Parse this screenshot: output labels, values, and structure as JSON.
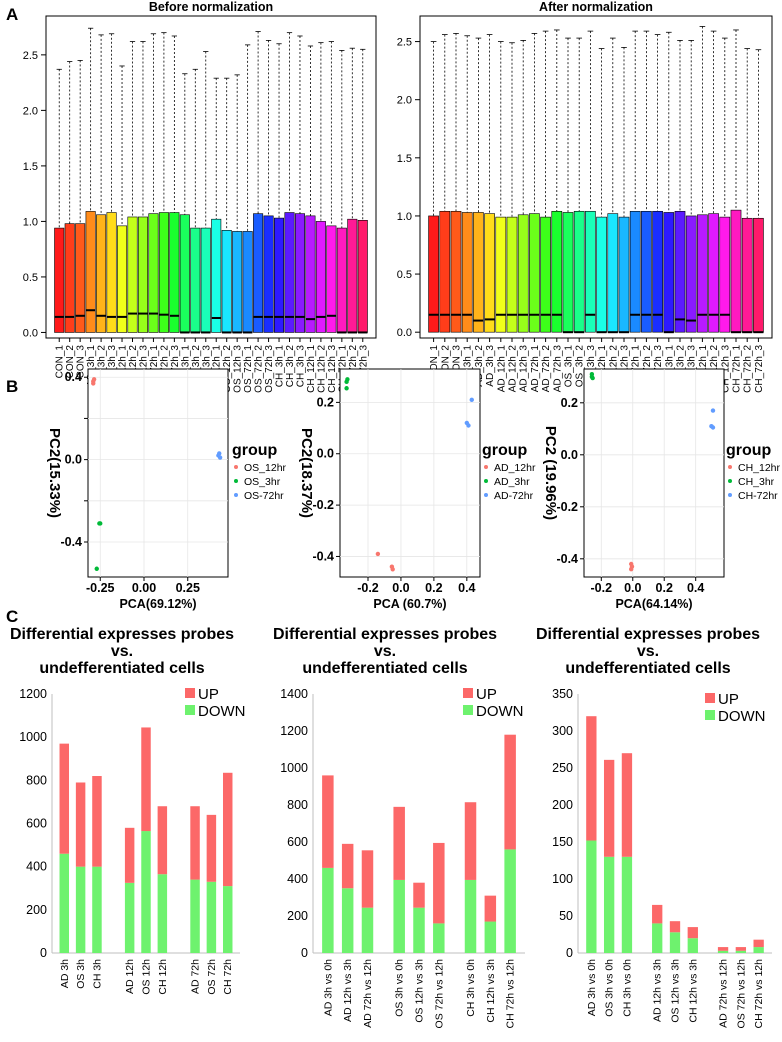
{
  "panels": {
    "a_label": "A",
    "b_label": "B",
    "c_label": "C"
  },
  "chart_data": [
    {
      "id": "box_before",
      "type": "box",
      "title": "Before normalization",
      "ylim": [
        -0.05,
        2.85
      ],
      "yticks": [
        "0.0",
        "0.5",
        "1.0",
        "1.5",
        "2.0",
        "2.5"
      ],
      "categories": [
        "CON_1",
        "CON_2",
        "CON_3",
        "AD_3h_1",
        "AD_3h_2",
        "AD_3h_3",
        "AD_12h_1",
        "AD_12h_2",
        "AD_12h_3",
        "AD_72h_1",
        "AD_72h_2",
        "AD_72h_3",
        "OS_3h_1",
        "OS_3h_2",
        "OS_3h_3",
        "OS_12h_1",
        "OS_12h_2",
        "OS_12h_3",
        "OS_72h_1",
        "OS_72h_2",
        "OS_72h_3",
        "CH_3h_1",
        "CH_3h_2",
        "CH_3h_3",
        "CH_12h_1",
        "CH_12h_2",
        "CH_12h_3",
        "CH_72h_1",
        "CH_72h_2",
        "CH_72h_3"
      ],
      "q3": [
        0.94,
        0.98,
        0.98,
        1.09,
        1.06,
        1.08,
        0.96,
        1.04,
        1.04,
        1.07,
        1.08,
        1.08,
        1.06,
        0.94,
        0.94,
        1.02,
        0.92,
        0.91,
        0.91,
        1.07,
        1.05,
        1.03,
        1.08,
        1.07,
        1.05,
        1.0,
        0.96,
        0.94,
        1.02,
        1.01
      ],
      "median": [
        0.14,
        0.14,
        0.15,
        0.2,
        0.15,
        0.14,
        0.14,
        0.17,
        0.17,
        0.17,
        0.16,
        0.15,
        0.0,
        0.0,
        0.0,
        0.13,
        0.0,
        0.0,
        0.0,
        0.14,
        0.14,
        0.14,
        0.14,
        0.14,
        0.12,
        0.14,
        0.15,
        0.0,
        0.0,
        0.0
      ],
      "whisker": [
        2.37,
        2.44,
        2.45,
        2.74,
        2.68,
        2.69,
        2.4,
        2.62,
        2.62,
        2.69,
        2.7,
        2.67,
        2.33,
        2.37,
        2.53,
        2.29,
        2.29,
        2.32,
        2.59,
        2.71,
        2.63,
        2.6,
        2.7,
        2.67,
        2.58,
        2.61,
        2.62,
        2.54,
        2.56,
        2.55
      ],
      "colors": [
        "#ff1a1a",
        "#ff3d1a",
        "#ff5a1a",
        "#ff8c1a",
        "#ffb31a",
        "#ffdc1a",
        "#f0ff1a",
        "#c4ff1a",
        "#97ff1a",
        "#6bff1a",
        "#3dff1a",
        "#1aff2e",
        "#1aff5c",
        "#1aff8a",
        "#1affb8",
        "#1affe6",
        "#1ae6ff",
        "#1ab8ff",
        "#1a8aff",
        "#1a5cff",
        "#1a2eff",
        "#2e1aff",
        "#5c1aff",
        "#8a1aff",
        "#b81aff",
        "#e01aff",
        "#ff1aeb",
        "#ff1ac0",
        "#ff1a96",
        "#ff1a6b"
      ]
    },
    {
      "id": "box_after",
      "type": "box",
      "title": "After normalization",
      "ylim": [
        -0.05,
        2.72
      ],
      "yticks": [
        "0.0",
        "0.5",
        "1.0",
        "1.5",
        "2.0",
        "2.5"
      ],
      "categories": [
        "CON_1",
        "CON_2",
        "CON_3",
        "AD_3h_1",
        "AD_3h_2",
        "AD_3h_3",
        "AD_12h_1",
        "AD_12h_2",
        "AD_12h_3",
        "AD_72h_1",
        "AD_72h_2",
        "AD_72h_3",
        "OS_3h_1",
        "OS_3h_2",
        "OS_3h_3",
        "OS_12h_1",
        "OS_12h_2",
        "OS_12h_3",
        "OS_72h_1",
        "OS_72h_2",
        "OS_72h_3",
        "CH_3h_1",
        "CH_3h_2",
        "CH_3h_3",
        "CH_12h_1",
        "CH_12h_2",
        "CH_12h_3",
        "CH_72h_1",
        "CH_72h_2",
        "CH_72h_3"
      ],
      "q3": [
        1.0,
        1.04,
        1.04,
        1.03,
        1.03,
        1.02,
        0.99,
        0.99,
        1.01,
        1.02,
        0.99,
        1.04,
        1.03,
        1.04,
        1.04,
        0.99,
        1.02,
        0.99,
        1.04,
        1.04,
        1.04,
        1.03,
        1.04,
        1.0,
        1.01,
        1.02,
        0.99,
        1.05,
        0.98,
        0.98
      ],
      "median": [
        0.15,
        0.15,
        0.15,
        0.15,
        0.1,
        0.11,
        0.15,
        0.15,
        0.15,
        0.15,
        0.15,
        0.15,
        0.0,
        0.0,
        0.15,
        0.0,
        0.0,
        0.0,
        0.15,
        0.15,
        0.15,
        0.0,
        0.11,
        0.1,
        0.15,
        0.15,
        0.15,
        0.0,
        0.0,
        0.0
      ],
      "whisker": [
        2.5,
        2.56,
        2.57,
        2.55,
        2.53,
        2.56,
        2.5,
        2.49,
        2.51,
        2.57,
        2.59,
        2.6,
        2.53,
        2.53,
        2.59,
        2.44,
        2.53,
        2.45,
        2.59,
        2.59,
        2.56,
        2.58,
        2.51,
        2.51,
        2.63,
        2.59,
        2.53,
        2.6,
        2.44,
        2.43
      ],
      "colors": [
        "#ff1a1a",
        "#ff3d1a",
        "#ff5a1a",
        "#ff8c1a",
        "#ffb31a",
        "#ffdc1a",
        "#f0ff1a",
        "#c4ff1a",
        "#97ff1a",
        "#6bff1a",
        "#3dff1a",
        "#1aff2e",
        "#1aff5c",
        "#1aff8a",
        "#1affb8",
        "#1affe6",
        "#1ae6ff",
        "#1ab8ff",
        "#1a8aff",
        "#1a5cff",
        "#1a2eff",
        "#2e1aff",
        "#5c1aff",
        "#8a1aff",
        "#b81aff",
        "#e01aff",
        "#ff1aeb",
        "#ff1ac0",
        "#ff1a96",
        "#ff1a6b"
      ]
    },
    {
      "id": "pca_os",
      "type": "scatter",
      "xlabel": "PCA(69.12%)",
      "ylabel": "PC2(15.33%)",
      "xlim": [
        -0.32,
        0.48
      ],
      "ylim": [
        -0.57,
        0.44
      ],
      "xticks": [
        -0.25,
        0.0,
        0.25
      ],
      "xtick_labels": [
        "-0.25",
        "0.00",
        "0.25"
      ],
      "yticks": [
        -0.4,
        -0.2,
        0.0,
        0.2,
        0.4
      ],
      "ytick_labels": [
        "-0.4",
        "",
        "0.0",
        "",
        "0.4"
      ],
      "legend_title": "group",
      "series": [
        {
          "name": "OS_12hr",
          "color": "#f8766d",
          "points": [
            [
              -0.29,
              0.38
            ],
            [
              -0.29,
              0.37
            ],
            [
              -0.285,
              0.39
            ]
          ]
        },
        {
          "name": "OS_3hr",
          "color": "#00ba38",
          "points": [
            [
              -0.25,
              -0.31
            ],
            [
              -0.255,
              -0.31
            ],
            [
              -0.27,
              -0.53
            ]
          ]
        },
        {
          "name": "OS-72hr",
          "color": "#619cff",
          "points": [
            [
              0.43,
              0.03
            ],
            [
              0.435,
              0.01
            ],
            [
              0.425,
              0.02
            ]
          ]
        }
      ]
    },
    {
      "id": "pca_ad",
      "type": "scatter",
      "xlabel": "PCA (60.7%)",
      "ylabel": "PC2(18.37%)",
      "xlim": [
        -0.37,
        0.48
      ],
      "ylim": [
        -0.48,
        0.33
      ],
      "xticks": [
        -0.2,
        0.0,
        0.2,
        0.4
      ],
      "xtick_labels": [
        "-0.2",
        "0.0",
        "0.2",
        "0.4"
      ],
      "yticks": [
        -0.4,
        -0.2,
        0.0,
        0.2
      ],
      "ytick_labels": [
        "-0.4",
        "-0.2",
        "0.0",
        "0.2"
      ],
      "legend_title": "group",
      "series": [
        {
          "name": "AD_12hr",
          "color": "#f8766d",
          "points": [
            [
              -0.14,
              -0.39
            ],
            [
              -0.05,
              -0.45
            ],
            [
              -0.055,
              -0.44
            ]
          ]
        },
        {
          "name": "AD_3hr",
          "color": "#00ba38",
          "points": [
            [
              -0.33,
              0.28
            ],
            [
              -0.33,
              0.255
            ],
            [
              -0.325,
              0.29
            ]
          ]
        },
        {
          "name": "AD-72hr",
          "color": "#619cff",
          "points": [
            [
              0.4,
              0.12
            ],
            [
              0.41,
              0.11
            ],
            [
              0.43,
              0.21
            ]
          ]
        }
      ]
    },
    {
      "id": "pca_ch",
      "type": "scatter",
      "xlabel": "PCA(64.14%)",
      "ylabel": "PC2 (19.96%)",
      "xlim": [
        -0.31,
        0.58
      ],
      "ylim": [
        -0.47,
        0.33
      ],
      "xticks": [
        -0.2,
        0.0,
        0.2,
        0.4
      ],
      "xtick_labels": [
        "-0.2",
        "0.0",
        "0.2",
        "0.4"
      ],
      "yticks": [
        -0.4,
        -0.2,
        0.0,
        0.2
      ],
      "ytick_labels": [
        "-0.4",
        "-0.2",
        "0.0",
        "0.2"
      ],
      "legend_title": "group",
      "series": [
        {
          "name": "CH_12hr",
          "color": "#f8766d",
          "points": [
            [
              -0.01,
              -0.42
            ],
            [
              -0.005,
              -0.43
            ],
            [
              -0.01,
              -0.44
            ]
          ]
        },
        {
          "name": "CH_3hr",
          "color": "#00ba38",
          "points": [
            [
              -0.26,
              0.3
            ],
            [
              -0.255,
              0.295
            ],
            [
              -0.26,
              0.31
            ]
          ]
        },
        {
          "name": "CH-72hr",
          "color": "#619cff",
          "points": [
            [
              0.5,
              0.11
            ],
            [
              0.51,
              0.105
            ],
            [
              0.51,
              0.17
            ]
          ]
        }
      ]
    },
    {
      "id": "bar_time",
      "type": "bar",
      "stacked": true,
      "title_lines": [
        "Differential expresses probes",
        "vs.",
        "undefferentiated cells"
      ],
      "ylim": [
        0,
        1200
      ],
      "yticks": [
        0,
        200,
        400,
        600,
        800,
        1000,
        1200
      ],
      "categories": [
        "AD 3h",
        "OS 3h",
        "CH 3h",
        "AD 12h",
        "OS 12h",
        "CH 12h",
        "AD 72h",
        "OS 72h",
        "CH 72h"
      ],
      "series": [
        {
          "name": "DOWN",
          "color": "#6ef26e",
          "values": [
            460,
            400,
            400,
            325,
            565,
            365,
            340,
            330,
            310
          ]
        },
        {
          "name": "UP",
          "color": "#fc6868",
          "values": [
            510,
            390,
            420,
            255,
            480,
            315,
            340,
            310,
            525
          ]
        }
      ]
    },
    {
      "id": "bar_pair_all",
      "type": "bar",
      "stacked": true,
      "title_lines": [
        "Differential expresses probes",
        "vs.",
        "undefferentiated cells"
      ],
      "ylim": [
        0,
        1400
      ],
      "yticks": [
        0,
        200,
        400,
        600,
        800,
        1000,
        1200,
        1400
      ],
      "categories": [
        "AD 3h vs 0h",
        "AD 12h vs 3h",
        "AD 72h vs 12h",
        "OS 3h vs 0h",
        "OS 12h vs 3h",
        "OS 72h vs 12h",
        "CH 3h vs 0h",
        "CH 12h vs 3h",
        "CH 72h vs 12h"
      ],
      "series": [
        {
          "name": "DOWN",
          "color": "#6ef26e",
          "values": [
            460,
            350,
            245,
            395,
            245,
            160,
            395,
            170,
            560
          ]
        },
        {
          "name": "UP",
          "color": "#fc6868",
          "values": [
            500,
            240,
            310,
            395,
            135,
            435,
            420,
            140,
            620
          ]
        }
      ]
    },
    {
      "id": "bar_pair_small",
      "type": "bar",
      "stacked": true,
      "title_lines": [
        "Differential expresses probes",
        "vs.",
        "undefferentiated cells"
      ],
      "ylim": [
        0,
        350
      ],
      "yticks": [
        0,
        50,
        100,
        150,
        200,
        250,
        300,
        350
      ],
      "categories": [
        "AD 3h vs 0h",
        "OS 3h vs 0h",
        "CH 3h vs 0h",
        "AD 12h vs 3h",
        "OS 12h vs 3h",
        "CH 12h vs 3h",
        "AD 72h vs 12h",
        "OS 72h vs 12h",
        "CH 72h vs 12h"
      ],
      "series": [
        {
          "name": "DOWN",
          "color": "#6ef26e",
          "values": [
            152,
            130,
            130,
            40,
            28,
            20,
            3,
            3,
            8
          ]
        },
        {
          "name": "UP",
          "color": "#fc6868",
          "values": [
            168,
            131,
            140,
            25,
            15,
            15,
            5,
            5,
            10
          ]
        }
      ]
    }
  ]
}
